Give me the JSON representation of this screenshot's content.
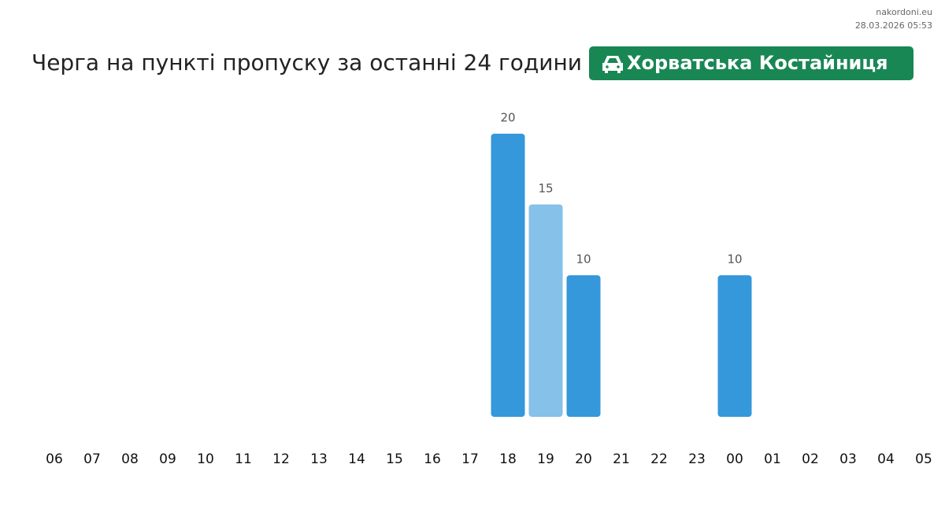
{
  "header": {
    "site": "nakordoni.eu",
    "timestamp": "28.03.2026 05:53"
  },
  "chart_data": {
    "type": "bar",
    "title": "Черга на пункті пропуску за останні 24 години",
    "badge": "Хорватська Костайниця",
    "categories": [
      "06",
      "07",
      "08",
      "09",
      "10",
      "11",
      "12",
      "13",
      "14",
      "15",
      "16",
      "17",
      "18",
      "19",
      "20",
      "21",
      "22",
      "23",
      "00",
      "01",
      "02",
      "03",
      "04",
      "05"
    ],
    "values": [
      null,
      null,
      null,
      null,
      null,
      null,
      null,
      null,
      null,
      null,
      null,
      null,
      20,
      15,
      10,
      null,
      null,
      null,
      10,
      null,
      null,
      null,
      null,
      null
    ],
    "colors": [
      "#3498db",
      "#3498db",
      "#3498db",
      "#3498db",
      "#3498db",
      "#3498db",
      "#3498db",
      "#3498db",
      "#3498db",
      "#3498db",
      "#3498db",
      "#3498db",
      "#3498db",
      "#85c1e9",
      "#3498db",
      "#3498db",
      "#3498db",
      "#3498db",
      "#3498db",
      "#3498db",
      "#3498db",
      "#3498db",
      "#3498db",
      "#3498db"
    ]
  }
}
